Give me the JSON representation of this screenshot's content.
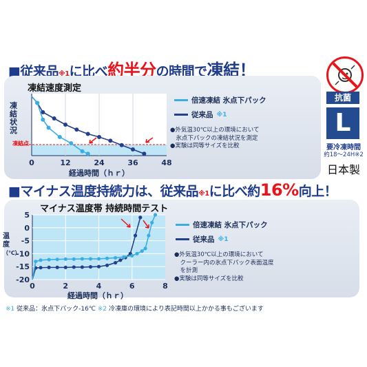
{
  "heading1": {
    "prefix": "■従来品",
    "note": "※1",
    "mid": "に比べ",
    "big": "約半分",
    "rest": "の時間で",
    "end": "凍結！"
  },
  "heading2": {
    "prefix": "■マイナス温度持続力は、従来品",
    "note": "※1",
    "mid": "に比べ約",
    "big": "16%",
    "end": "向上！"
  },
  "side": {
    "label_kanbin": "抗菌",
    "size": "L",
    "time_label": "要冷凍時間",
    "time_value": "約18〜24H",
    "time_note": "※2",
    "origin": "日本製"
  },
  "chart1": {
    "title": "凍結速度測定",
    "ylabel": "凍結状況",
    "freeze_label": "凍結点",
    "xlabel": "経過時間（ｈｒ）",
    "legend": [
      {
        "label": "倍速凍結 氷点下パック",
        "color": "#3aaee2",
        "note": ""
      },
      {
        "label": "従来品",
        "color": "#243f8c",
        "note": "※1"
      }
    ],
    "bullets": [
      "●外気温30℃以上の環境において",
      "　氷点下パックの凍結状況を測定",
      "●実験は同等サイズを比較"
    ]
  },
  "chart2": {
    "title": "マイナス温度帯 持続時間テスト",
    "ylabel_top": "温度",
    "ylabel_unit": "（℃）",
    "xlabel": "経過時間（ｈｒ）",
    "legend": [
      {
        "label": "倍速凍結 氷点下パック",
        "color": "#3aaee2",
        "note": ""
      },
      {
        "label": "従来品",
        "color": "#243f8c",
        "note": "※1"
      }
    ],
    "bullets": [
      "●外気温30℃以上の環境において",
      "　クーラー内の氷点下パック表面温度",
      "　を計測",
      "●実験は同等サイズを比較"
    ]
  },
  "footnote": {
    "n1": "※1",
    "t1": "従来品：氷点下パック-16℃",
    "n2": "※2",
    "t2": "冷凍庫の環境により表記時間以上かかる事もございます"
  },
  "chart_data": [
    {
      "type": "line",
      "title": "凍結速度測定",
      "xlabel": "経過時間（ｈｒ）",
      "ylabel": "凍結状況",
      "x_ticks": [
        0,
        12,
        24,
        36,
        48
      ],
      "xlim": [
        0,
        48
      ],
      "series": [
        {
          "name": "倍速凍結 氷点下パック",
          "color": "#3aaee2",
          "x": [
            2,
            4,
            6,
            10,
            14,
            18,
            20
          ],
          "y": [
            0.85,
            0.58,
            0.45,
            0.3,
            0.2,
            0.07,
            0.03
          ]
        },
        {
          "name": "従来品",
          "color": "#243f8c",
          "x": [
            2,
            4,
            8,
            12,
            16,
            20,
            24,
            28,
            32,
            36,
            40
          ],
          "y": [
            0.85,
            0.7,
            0.6,
            0.5,
            0.42,
            0.35,
            0.3,
            0.24,
            0.17,
            0.1,
            0.03
          ]
        }
      ]
    },
    {
      "type": "line",
      "title": "マイナス温度帯 持続時間テスト",
      "xlabel": "経過時間（ｈｒ）",
      "ylabel": "温度（℃）",
      "x_ticks": [
        0,
        2,
        4,
        6,
        8
      ],
      "y_ticks": [
        5,
        0,
        -5,
        -10,
        -15,
        -20
      ],
      "xlim": [
        0,
        8
      ],
      "ylim": [
        -20,
        5
      ],
      "series": [
        {
          "name": "倍速凍結 氷点下パック",
          "color": "#3aaee2",
          "x": [
            0,
            0.2,
            0.5,
            1,
            1.5,
            2,
            2.5,
            3,
            3.5,
            4,
            4.5,
            5,
            5.5,
            6,
            6.3,
            6.6,
            6.8,
            7,
            7.2,
            7.4
          ],
          "y": [
            -20,
            -13,
            -12.5,
            -12.3,
            -12.2,
            -12.1,
            -12.1,
            -12,
            -12,
            -12,
            -11.8,
            -11.6,
            -11.3,
            -10.8,
            -10,
            -9,
            -8,
            -3,
            2,
            5
          ]
        },
        {
          "name": "従来品",
          "color": "#243f8c",
          "x": [
            0,
            0.2,
            0.5,
            1,
            1.5,
            2,
            2.5,
            3,
            3.5,
            4,
            4.5,
            5,
            5.3,
            5.6,
            5.9,
            6.2,
            6.5
          ],
          "y": [
            -20,
            -15.5,
            -15.4,
            -15.3,
            -15.3,
            -15.3,
            -15.2,
            -15.2,
            -15.1,
            -15,
            -14.5,
            -13.5,
            -12.5,
            -11.5,
            -10,
            -3,
            4
          ]
        }
      ]
    }
  ]
}
